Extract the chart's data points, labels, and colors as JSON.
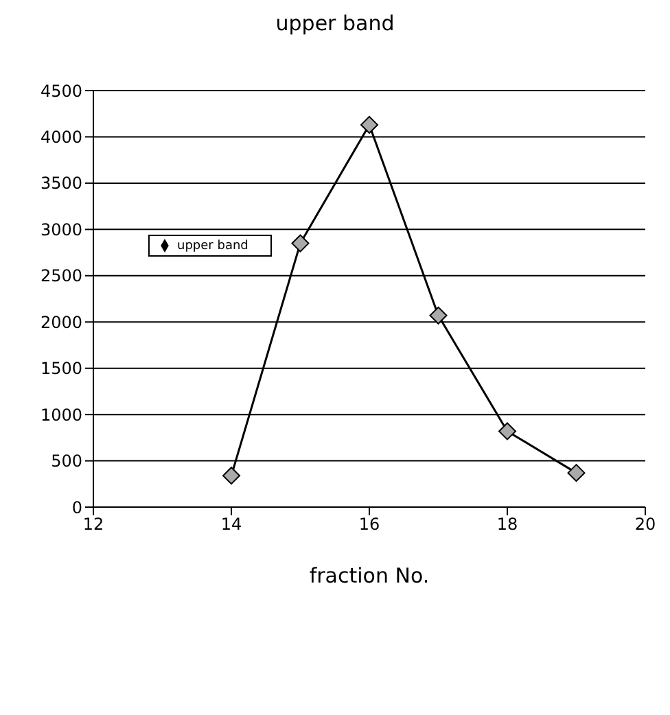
{
  "chart_data": {
    "type": "line",
    "title": "upper band",
    "xlabel": "fraction No.",
    "x": [
      14,
      15,
      16,
      17,
      18,
      19
    ],
    "series": [
      {
        "name": "upper band",
        "color": "#000000",
        "values": [
          340,
          2850,
          4130,
          2070,
          820,
          370
        ]
      }
    ],
    "xlim": [
      12,
      20
    ],
    "xticks": [
      12,
      14,
      16,
      18,
      20
    ],
    "ylim": [
      0,
      4500
    ],
    "yticks": [
      0,
      500,
      1000,
      1500,
      2000,
      2500,
      3000,
      3500,
      4000,
      4500
    ],
    "grid": "y",
    "legend": "top left",
    "marker": "diamond",
    "line_style": "solid"
  }
}
